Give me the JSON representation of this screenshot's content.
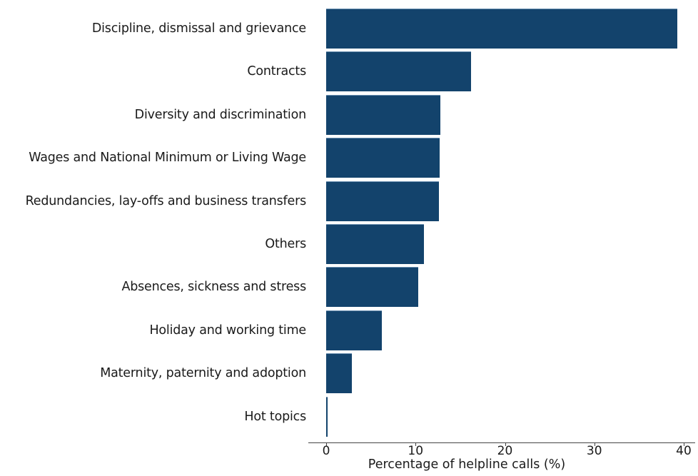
{
  "chart_data": {
    "type": "bar",
    "orientation": "horizontal",
    "title": "",
    "xlabel": "Percentage of helpline calls (%)",
    "ylabel": "",
    "xlim": [
      0,
      40
    ],
    "xticks": [
      "0",
      "10",
      "20",
      "30",
      "40"
    ],
    "grid": false,
    "legend": null,
    "bar_color": "#13436c",
    "categories": [
      "Discipline, dismissal and grievance",
      "Contracts",
      "Diversity and discrimination",
      "Wages and National Minimum or Living Wage",
      "Redundancies, lay-offs and business transfers",
      "Others",
      "Absences, sickness and stress",
      "Holiday and working time",
      "Maternity, paternity and adoption",
      "Hot topics"
    ],
    "values": [
      39.3,
      16.2,
      12.8,
      12.7,
      12.6,
      10.9,
      10.3,
      6.2,
      2.9,
      0.1
    ]
  }
}
